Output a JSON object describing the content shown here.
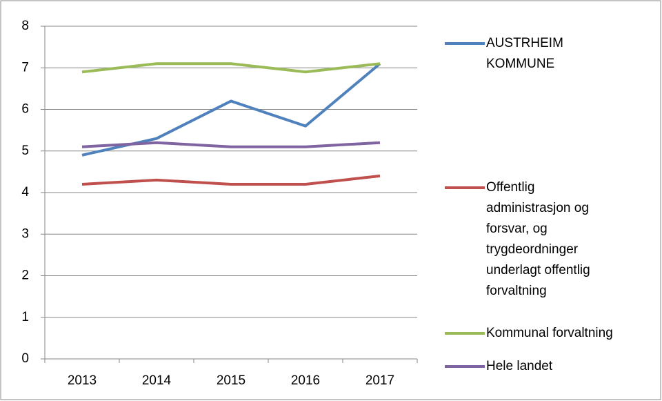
{
  "chart_data": {
    "type": "line",
    "categories": [
      "2013",
      "2014",
      "2015",
      "2016",
      "2017"
    ],
    "series": [
      {
        "name": "AUSTRHEIM KOMMUNE",
        "color": "#4f81bd",
        "values": [
          4.9,
          5.3,
          6.2,
          5.6,
          7.1
        ]
      },
      {
        "name": "Offentlig administrasjon og forsvar, og trygdeordninger underlagt offentlig forvaltning",
        "color": "#c0504d",
        "values": [
          4.2,
          4.3,
          4.2,
          4.2,
          4.4
        ]
      },
      {
        "name": "Kommunal forvaltning",
        "color": "#9bbb59",
        "values": [
          6.9,
          7.1,
          7.1,
          6.9,
          7.1
        ]
      },
      {
        "name": "Hele landet",
        "color": "#8064a2",
        "values": [
          5.1,
          5.2,
          5.1,
          5.1,
          5.2
        ]
      }
    ],
    "ylim": [
      0,
      8
    ],
    "yticks": [
      0,
      1,
      2,
      3,
      4,
      5,
      6,
      7,
      8
    ],
    "grid": true,
    "legend": "right"
  }
}
